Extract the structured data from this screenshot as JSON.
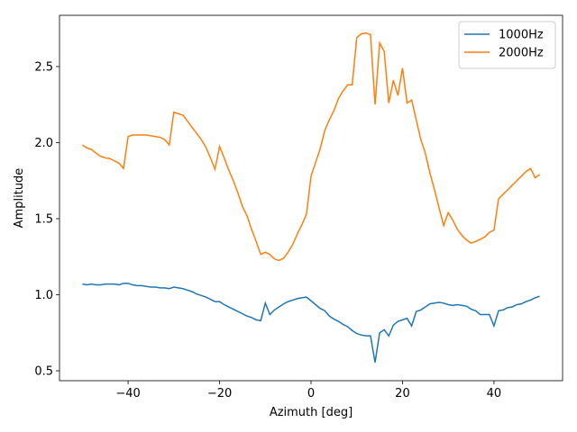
{
  "chart_data": {
    "type": "line",
    "xlabel": "Azimuth [deg]",
    "ylabel": "Amplitude",
    "x": [
      -50,
      -49,
      -48,
      -47,
      -46,
      -45,
      -44,
      -43,
      -42,
      -41,
      -40,
      -39,
      -38,
      -37,
      -36,
      -35,
      -34,
      -33,
      -32,
      -31,
      -30,
      -29,
      -28,
      -27,
      -26,
      -25,
      -24,
      -23,
      -22,
      -21,
      -20,
      -19,
      -18,
      -17,
      -16,
      -15,
      -14,
      -13,
      -12,
      -11,
      -10,
      -9,
      -8,
      -7,
      -6,
      -5,
      -4,
      -3,
      -2,
      -1,
      0,
      1,
      2,
      3,
      4,
      5,
      6,
      7,
      8,
      9,
      10,
      11,
      12,
      13,
      14,
      15,
      16,
      17,
      18,
      19,
      20,
      21,
      22,
      23,
      24,
      25,
      26,
      27,
      28,
      29,
      30,
      31,
      32,
      33,
      34,
      35,
      36,
      37,
      38,
      39,
      40,
      41,
      42,
      43,
      44,
      45,
      46,
      47,
      48,
      49,
      50
    ],
    "series": [
      {
        "name": "1000Hz",
        "color": "#1f77b4",
        "values": [
          1.07,
          1.065,
          1.07,
          1.065,
          1.065,
          1.07,
          1.07,
          1.07,
          1.065,
          1.075,
          1.075,
          1.065,
          1.06,
          1.06,
          1.055,
          1.05,
          1.05,
          1.045,
          1.045,
          1.04,
          1.05,
          1.045,
          1.04,
          1.03,
          1.02,
          1.005,
          0.995,
          0.985,
          0.97,
          0.955,
          0.955,
          0.935,
          0.92,
          0.905,
          0.89,
          0.875,
          0.86,
          0.85,
          0.835,
          0.83,
          0.945,
          0.87,
          0.9,
          0.92,
          0.94,
          0.955,
          0.965,
          0.975,
          0.98,
          0.985,
          0.96,
          0.935,
          0.91,
          0.895,
          0.86,
          0.84,
          0.825,
          0.805,
          0.79,
          0.765,
          0.745,
          0.735,
          0.73,
          0.73,
          0.555,
          0.75,
          0.77,
          0.73,
          0.8,
          0.825,
          0.835,
          0.845,
          0.795,
          0.89,
          0.9,
          0.92,
          0.94,
          0.945,
          0.95,
          0.945,
          0.935,
          0.93,
          0.935,
          0.93,
          0.925,
          0.905,
          0.895,
          0.87,
          0.87,
          0.87,
          0.795,
          0.895,
          0.9,
          0.915,
          0.92,
          0.935,
          0.94,
          0.955,
          0.965,
          0.98,
          0.99
        ]
      },
      {
        "name": "2000Hz",
        "color": "#ff7f0e",
        "values": [
          1.985,
          1.965,
          1.955,
          1.93,
          1.91,
          1.9,
          1.895,
          1.88,
          1.865,
          1.83,
          2.04,
          2.05,
          2.05,
          2.05,
          2.05,
          2.045,
          2.04,
          2.035,
          2.02,
          1.985,
          2.2,
          2.19,
          2.18,
          2.14,
          2.1,
          2.06,
          2.02,
          1.97,
          1.9,
          1.825,
          1.975,
          1.9,
          1.82,
          1.75,
          1.67,
          1.58,
          1.52,
          1.43,
          1.35,
          1.265,
          1.28,
          1.265,
          1.235,
          1.225,
          1.24,
          1.28,
          1.33,
          1.4,
          1.46,
          1.53,
          1.78,
          1.87,
          1.96,
          2.08,
          2.15,
          2.21,
          2.29,
          2.34,
          2.38,
          2.38,
          2.69,
          2.715,
          2.72,
          2.71,
          2.25,
          2.655,
          2.6,
          2.26,
          2.41,
          2.31,
          2.49,
          2.26,
          2.28,
          2.15,
          2.02,
          1.93,
          1.8,
          1.69,
          1.57,
          1.455,
          1.54,
          1.49,
          1.43,
          1.39,
          1.36,
          1.34,
          1.35,
          1.365,
          1.38,
          1.41,
          1.425,
          1.63,
          1.66,
          1.69,
          1.72,
          1.75,
          1.78,
          1.81,
          1.83,
          1.77,
          1.79
        ]
      }
    ],
    "xlim": [
      -55,
      55
    ],
    "ylim": [
      0.435,
      2.837
    ],
    "xticks": [
      {
        "value": -40,
        "label": "−40"
      },
      {
        "value": -20,
        "label": "−20"
      },
      0,
      20,
      40
    ],
    "yticks": [
      0.5,
      {
        "value": 1,
        "label": "1.0"
      },
      1.5,
      {
        "value": 2,
        "label": "2.0"
      },
      2.5
    ],
    "legend": "upper right",
    "grid": false
  }
}
